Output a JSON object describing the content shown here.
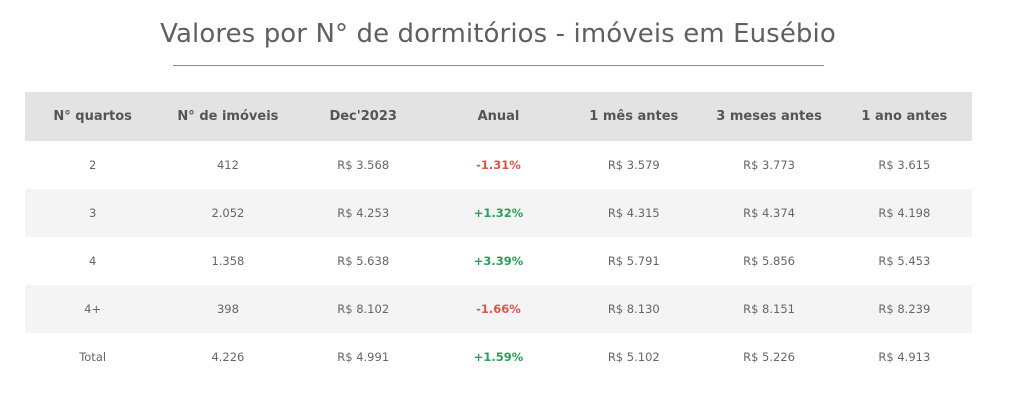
{
  "title": "Valores por N° de dormitórios - imóveis em Eusébio",
  "table": {
    "headers": [
      "N° quartos",
      "N° de imóveis",
      "Dec'2023",
      "Anual",
      "1 mês antes",
      "3 meses antes",
      "1 ano antes"
    ],
    "rows": [
      [
        "2",
        "412",
        "R$ 3.568",
        "-1.31%",
        "R$ 3.579",
        "R$ 3.773",
        "R$ 3.615"
      ],
      [
        "3",
        "2.052",
        "R$ 4.253",
        "+1.32%",
        "R$ 4.315",
        "R$ 4.374",
        "R$ 4.198"
      ],
      [
        "4",
        "1.358",
        "R$ 5.638",
        "+3.39%",
        "R$ 5.791",
        "R$ 5.856",
        "R$ 5.453"
      ],
      [
        "4+",
        "398",
        "R$ 8.102",
        "-1.66%",
        "R$ 8.130",
        "R$ 8.151",
        "R$ 8.239"
      ],
      [
        "Total",
        "4.226",
        "R$ 4.991",
        "+1.59%",
        "R$ 5.102",
        "R$ 5.226",
        "R$ 4.913"
      ]
    ]
  },
  "colors": {
    "negative": "#d9534f",
    "positive": "#2e9e59",
    "header_bg": "#e3e3e3",
    "stripe_bg": "#f4f4f4"
  }
}
